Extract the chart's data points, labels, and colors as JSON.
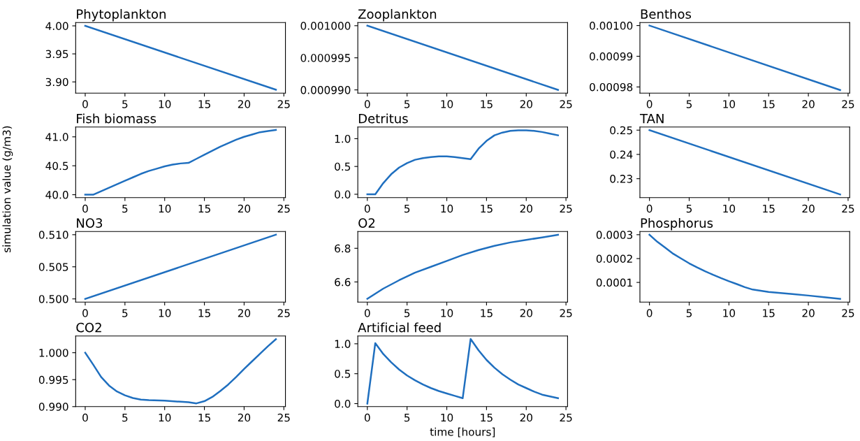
{
  "chart_data": [
    {
      "type": "line",
      "title": "Phytoplankton",
      "xlim": [
        -1.2,
        25.2
      ],
      "xticks": [
        0,
        5,
        10,
        15,
        20,
        25
      ],
      "ylim": [
        3.88,
        4.006
      ],
      "yticks": [
        {
          "value": 3.9,
          "label": "3.90"
        },
        {
          "value": 3.95,
          "label": "3.95"
        },
        {
          "value": 4.0,
          "label": "4.00"
        }
      ],
      "series": [
        {
          "color": "#1f6fbf",
          "x": [
            0,
            24
          ],
          "values": [
            4.0,
            3.886
          ]
        }
      ]
    },
    {
      "type": "line",
      "title": "Zooplankton",
      "xlim": [
        -1.2,
        25.2
      ],
      "xticks": [
        0,
        5,
        10,
        15,
        20,
        25
      ],
      "ylim": [
        0.0009895,
        0.0010005
      ],
      "yticks": [
        {
          "value": 0.00099,
          "label": "0.000990"
        },
        {
          "value": 0.000995,
          "label": "0.000995"
        },
        {
          "value": 0.001,
          "label": "0.001000"
        }
      ],
      "series": [
        {
          "color": "#1f6fbf",
          "x": [
            0,
            24
          ],
          "values": [
            0.001,
            0.00099
          ]
        }
      ]
    },
    {
      "type": "line",
      "title": "Benthos",
      "xlim": [
        -1.2,
        25.2
      ],
      "xticks": [
        0,
        5,
        10,
        15,
        20,
        25
      ],
      "ylim": [
        0.000978,
        0.001001
      ],
      "yticks": [
        {
          "value": 0.00098,
          "label": "0.00098"
        },
        {
          "value": 0.00099,
          "label": "0.00099"
        },
        {
          "value": 0.001,
          "label": "0.00100"
        }
      ],
      "series": [
        {
          "color": "#1f6fbf",
          "x": [
            0,
            24
          ],
          "values": [
            0.001,
            0.000979
          ]
        }
      ]
    },
    {
      "type": "line",
      "title": "Fish biomass",
      "xlim": [
        -1.2,
        25.2
      ],
      "xticks": [
        0,
        5,
        10,
        15,
        20,
        25
      ],
      "ylim": [
        39.95,
        41.17
      ],
      "yticks": [
        {
          "value": 40.0,
          "label": "40.0"
        },
        {
          "value": 40.5,
          "label": "40.5"
        },
        {
          "value": 41.0,
          "label": "41.0"
        }
      ],
      "series": [
        {
          "color": "#1f6fbf",
          "x": [
            0,
            1,
            2,
            3,
            4,
            5,
            6,
            7,
            8,
            9,
            10,
            11,
            12,
            13,
            14,
            15,
            16,
            17,
            18,
            19,
            20,
            21,
            22,
            23,
            24
          ],
          "values": [
            40.0,
            40.0,
            40.06,
            40.12,
            40.18,
            40.24,
            40.3,
            40.36,
            40.41,
            40.45,
            40.49,
            40.52,
            40.54,
            40.55,
            40.62,
            40.69,
            40.76,
            40.83,
            40.89,
            40.95,
            41.0,
            41.04,
            41.08,
            41.1,
            41.12
          ]
        }
      ]
    },
    {
      "type": "line",
      "title": "Detritus",
      "xlim": [
        -1.2,
        25.2
      ],
      "xticks": [
        0,
        5,
        10,
        15,
        20,
        25
      ],
      "ylim": [
        -0.06,
        1.21
      ],
      "yticks": [
        {
          "value": 0.0,
          "label": "0.0"
        },
        {
          "value": 0.5,
          "label": "0.5"
        },
        {
          "value": 1.0,
          "label": "1.0"
        }
      ],
      "series": [
        {
          "color": "#1f6fbf",
          "x": [
            0,
            1,
            2,
            3,
            4,
            5,
            6,
            7,
            8,
            9,
            10,
            11,
            12,
            13,
            14,
            15,
            16,
            17,
            18,
            19,
            20,
            21,
            22,
            23,
            24
          ],
          "values": [
            0.0,
            0.0,
            0.2,
            0.36,
            0.48,
            0.56,
            0.62,
            0.65,
            0.67,
            0.68,
            0.68,
            0.67,
            0.65,
            0.63,
            0.82,
            0.96,
            1.06,
            1.11,
            1.14,
            1.15,
            1.15,
            1.14,
            1.12,
            1.09,
            1.06
          ]
        }
      ]
    },
    {
      "type": "line",
      "title": "TAN",
      "xlim": [
        -1.2,
        25.2
      ],
      "xticks": [
        0,
        5,
        10,
        15,
        20,
        25
      ],
      "ylim": [
        0.2222,
        0.2513
      ],
      "yticks": [
        0.23,
        0.24,
        0.25
      ],
      "series": [
        {
          "color": "#1f6fbf",
          "x": [
            0,
            24
          ],
          "values": [
            0.25,
            0.2235
          ]
        }
      ]
    },
    {
      "type": "line",
      "title": "NO3",
      "ylabel": "simulation value (g/m3)",
      "xlim": [
        -1.2,
        25.2
      ],
      "xticks": [
        0,
        5,
        10,
        15,
        20,
        25
      ],
      "ylim": [
        0.4995,
        0.5105
      ],
      "yticks": [
        {
          "value": 0.5,
          "label": "0.500"
        },
        0.505,
        {
          "value": 0.51,
          "label": "0.510"
        }
      ],
      "series": [
        {
          "color": "#1f6fbf",
          "x": [
            0,
            24
          ],
          "values": [
            0.5,
            0.51
          ]
        }
      ]
    },
    {
      "type": "line",
      "title": "O2",
      "xlim": [
        -1.2,
        25.2
      ],
      "xticks": [
        0,
        5,
        10,
        15,
        20,
        25
      ],
      "ylim": [
        6.48,
        6.9
      ],
      "yticks": [
        6.6,
        6.8
      ],
      "series": [
        {
          "color": "#1f6fbf",
          "x": [
            0,
            2,
            4,
            6,
            8,
            10,
            12,
            14,
            16,
            18,
            20,
            22,
            24
          ],
          "values": [
            6.5,
            6.56,
            6.61,
            6.655,
            6.69,
            6.725,
            6.76,
            6.79,
            6.815,
            6.835,
            6.85,
            6.865,
            6.88
          ]
        }
      ]
    },
    {
      "type": "line",
      "title": "Phosphorus",
      "xlim": [
        -1.2,
        25.2
      ],
      "xticks": [
        0,
        5,
        10,
        15,
        20,
        25
      ],
      "ylim": [
        1.75e-05,
        0.0003135
      ],
      "yticks": [
        {
          "value": 0.0001,
          "label": "0.0001"
        },
        {
          "value": 0.0002,
          "label": "0.0002"
        },
        {
          "value": 0.0003,
          "label": "0.0003"
        }
      ],
      "series": [
        {
          "color": "#1f6fbf",
          "x": [
            0,
            1,
            2,
            3,
            4,
            5,
            6,
            7,
            8,
            9,
            10,
            11,
            12,
            13,
            14,
            15,
            16,
            18,
            20,
            22,
            24
          ],
          "values": [
            0.0003,
            0.00027,
            0.000245,
            0.00022,
            0.0002,
            0.00018,
            0.000163,
            0.000147,
            0.000132,
            0.000118,
            0.000105,
            9.3e-05,
            8e-05,
            7e-05,
            6.5e-05,
            6e-05,
            5.7e-05,
            5.1e-05,
            4.5e-05,
            3.8e-05,
            3.1e-05
          ]
        }
      ]
    },
    {
      "type": "line",
      "title": "CO2",
      "xlim": [
        -1.2,
        25.2
      ],
      "xticks": [
        0,
        5,
        10,
        15,
        20,
        25
      ],
      "ylim": [
        0.99,
        1.0031
      ],
      "yticks": [
        {
          "value": 0.99,
          "label": "0.990"
        },
        0.995,
        {
          "value": 1.0,
          "label": "1.000"
        }
      ],
      "series": [
        {
          "color": "#1f6fbf",
          "x": [
            0,
            1,
            2,
            3,
            4,
            5,
            6,
            7,
            8,
            10,
            12,
            13,
            14,
            15,
            16,
            17,
            18,
            19,
            20,
            21,
            22,
            23,
            24
          ],
          "values": [
            1.0,
            0.9978,
            0.9955,
            0.9939,
            0.9928,
            0.9921,
            0.9916,
            0.9913,
            0.9912,
            0.9911,
            0.9909,
            0.9908,
            0.9906,
            0.991,
            0.9918,
            0.9929,
            0.9941,
            0.9955,
            0.997,
            0.9984,
            0.9998,
            1.0012,
            1.0025
          ]
        }
      ]
    },
    {
      "type": "line",
      "title": "Artificial feed",
      "xlabel": "time [hours]",
      "xlim": [
        -1.2,
        25.2
      ],
      "xticks": [
        0,
        5,
        10,
        15,
        20,
        25
      ],
      "ylim": [
        -0.05,
        1.13
      ],
      "yticks": [
        {
          "value": 0.0,
          "label": "0.0"
        },
        {
          "value": 0.5,
          "label": "0.5"
        },
        {
          "value": 1.0,
          "label": "1.0"
        }
      ],
      "series": [
        {
          "color": "#1f6fbf",
          "x": [
            0,
            1,
            2,
            3,
            4,
            5,
            6,
            7,
            8,
            9,
            10,
            11,
            12,
            13,
            14,
            15,
            16,
            17,
            18,
            19,
            20,
            21,
            22,
            23,
            24
          ],
          "values": [
            0.0,
            1.01,
            0.83,
            0.69,
            0.57,
            0.47,
            0.39,
            0.32,
            0.26,
            0.21,
            0.17,
            0.13,
            0.09,
            1.08,
            0.89,
            0.73,
            0.6,
            0.49,
            0.4,
            0.32,
            0.26,
            0.2,
            0.15,
            0.12,
            0.09
          ]
        }
      ]
    }
  ]
}
